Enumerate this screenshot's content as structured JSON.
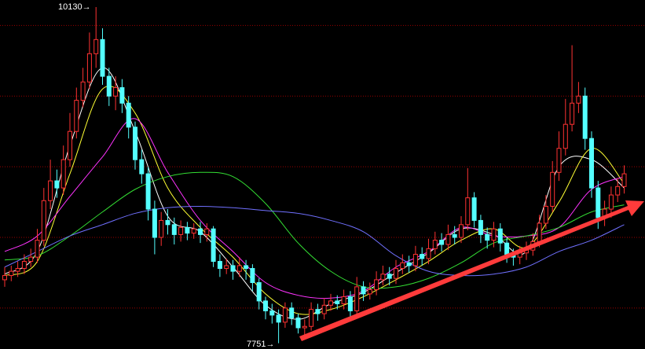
{
  "chart_data": {
    "type": "candlestick",
    "ylim": [
      7710,
      10180
    ],
    "yticks": [
      8000,
      8500,
      9000,
      9500,
      10000
    ],
    "grid": true,
    "up_color": "#ff3232",
    "down_color": "#54ffff",
    "grid_color": "#9a0000",
    "annotations": [
      {
        "label": "10130→"
      },
      {
        "label": "7751→"
      }
    ],
    "open": [
      8200,
      8230,
      8260,
      8280,
      8330,
      8360,
      8480,
      8760,
      8900,
      8850,
      9050,
      9250,
      9470,
      9600,
      9800,
      9900,
      9640,
      9500,
      9560,
      9450,
      9280,
      9050,
      8950,
      8700,
      8500,
      8620,
      8590,
      8520,
      8570,
      8530,
      8560,
      8520,
      8560,
      8330,
      8280,
      8300,
      8260,
      8300,
      8280,
      8180,
      8050,
      7980,
      7950,
      7900,
      8000,
      7930,
      7860,
      7870,
      7990,
      7960,
      8020,
      8050,
      8030,
      8080,
      7980,
      8150,
      8100,
      8130,
      8200,
      8240,
      8210,
      8280,
      8320,
      8300,
      8380,
      8350,
      8420,
      8480,
      8450,
      8520,
      8500,
      8590,
      8780,
      8620,
      8520,
      8480,
      8560,
      8460,
      8380,
      8360,
      8390,
      8410,
      8470,
      8600,
      8720,
      8960,
      9130,
      9300,
      9450,
      9500,
      9200,
      8850,
      8640,
      8700,
      8800,
      8860
    ],
    "high": [
      8290,
      8300,
      8330,
      8380,
      8420,
      8560,
      8850,
      9050,
      8980,
      9150,
      9380,
      9560,
      9700,
      9950,
      10130,
      9980,
      9700,
      9640,
      9620,
      9500,
      9320,
      9120,
      9000,
      8760,
      8680,
      8700,
      8640,
      8620,
      8610,
      8600,
      8610,
      8600,
      8580,
      8380,
      8350,
      8340,
      8360,
      8340,
      8310,
      8210,
      8080,
      8030,
      7990,
      8040,
      8040,
      7960,
      7920,
      8040,
      8030,
      8070,
      8100,
      8090,
      8130,
      8120,
      8220,
      8190,
      8180,
      8260,
      8300,
      8290,
      8340,
      8380,
      8370,
      8440,
      8430,
      8490,
      8540,
      8530,
      8590,
      8580,
      8650,
      8990,
      8820,
      8660,
      8570,
      8610,
      8600,
      8500,
      8420,
      8440,
      8470,
      8530,
      8660,
      8800,
      9040,
      9250,
      9480,
      9860,
      9600,
      9560,
      9250,
      8900,
      8760,
      8860,
      8920,
      9010
    ],
    "low": [
      8150,
      8190,
      8220,
      8240,
      8290,
      8320,
      8440,
      8700,
      8780,
      8800,
      9000,
      9200,
      9420,
      9550,
      9700,
      9580,
      9430,
      9400,
      9380,
      9200,
      8980,
      8880,
      8620,
      8380,
      8440,
      8520,
      8450,
      8470,
      8480,
      8490,
      8460,
      8470,
      8290,
      8220,
      8240,
      8200,
      8220,
      8200,
      8120,
      7990,
      7920,
      7890,
      7751,
      7860,
      7880,
      7820,
      7810,
      7840,
      7910,
      7920,
      7980,
      7990,
      7990,
      7930,
      7940,
      8050,
      8060,
      8090,
      8160,
      8160,
      8170,
      8240,
      8250,
      8260,
      8300,
      8310,
      8380,
      8400,
      8410,
      8450,
      8460,
      8550,
      8570,
      8460,
      8420,
      8430,
      8400,
      8320,
      8300,
      8310,
      8340,
      8370,
      8430,
      8560,
      8680,
      8900,
      9080,
      9250,
      9380,
      9120,
      8780,
      8560,
      8580,
      8640,
      8750,
      8810
    ],
    "close": [
      8230,
      8260,
      8280,
      8330,
      8360,
      8480,
      8760,
      8900,
      8850,
      9050,
      9250,
      9470,
      9600,
      9800,
      9900,
      9640,
      9500,
      9560,
      9450,
      9280,
      9050,
      8950,
      8700,
      8500,
      8620,
      8590,
      8520,
      8570,
      8530,
      8560,
      8520,
      8560,
      8330,
      8280,
      8300,
      8260,
      8300,
      8280,
      8180,
      8050,
      7980,
      7950,
      7900,
      8000,
      7930,
      7860,
      7870,
      7990,
      7960,
      8020,
      8050,
      8030,
      8080,
      7980,
      8150,
      8100,
      8130,
      8200,
      8240,
      8210,
      8280,
      8320,
      8300,
      8380,
      8350,
      8420,
      8480,
      8450,
      8520,
      8500,
      8590,
      8780,
      8620,
      8520,
      8480,
      8560,
      8460,
      8380,
      8360,
      8390,
      8410,
      8470,
      8600,
      8720,
      8960,
      9130,
      9300,
      9450,
      9500,
      9200,
      8850,
      8640,
      8700,
      8800,
      8860,
      8950
    ],
    "ma_x": [
      0,
      5,
      10,
      15,
      20,
      25,
      30,
      35,
      40,
      45,
      50,
      55,
      60,
      65,
      70,
      75,
      80,
      85,
      90,
      95
    ],
    "moving_averages": [
      {
        "color": "#ffffff",
        "values": [
          8240,
          8400,
          9150,
          9700,
          9250,
          8650,
          8540,
          8290,
          8020,
          7920,
          8030,
          8110,
          8250,
          8390,
          8560,
          8520,
          8400,
          9000,
          9050,
          8850
        ]
      },
      {
        "color": "#ffff33",
        "values": [
          8230,
          8330,
          8950,
          9550,
          9380,
          8850,
          8570,
          8360,
          8100,
          7960,
          7990,
          8080,
          8200,
          8330,
          8480,
          8560,
          8430,
          8750,
          9130,
          8880
        ]
      },
      {
        "color": "#ff33ff",
        "values": [
          8400,
          8510,
          8790,
          9070,
          9340,
          8960,
          8620,
          8400,
          8180,
          8090,
          8070,
          8120,
          8290,
          8400,
          8570,
          8510,
          8510,
          8570,
          8840,
          8930
        ]
      },
      {
        "color": "#33dd33",
        "values": [
          8340,
          8370,
          8510,
          8680,
          8840,
          8930,
          8960,
          8930,
          8740,
          8460,
          8260,
          8150,
          8150,
          8210,
          8320,
          8460,
          8510,
          8570,
          8680,
          8730
        ]
      },
      {
        "color": "#7070ff",
        "values": [
          8290,
          8400,
          8510,
          8590,
          8670,
          8710,
          8720,
          8710,
          8690,
          8670,
          8620,
          8540,
          8370,
          8260,
          8230,
          8240,
          8290,
          8400,
          8480,
          8590
        ]
      }
    ]
  }
}
